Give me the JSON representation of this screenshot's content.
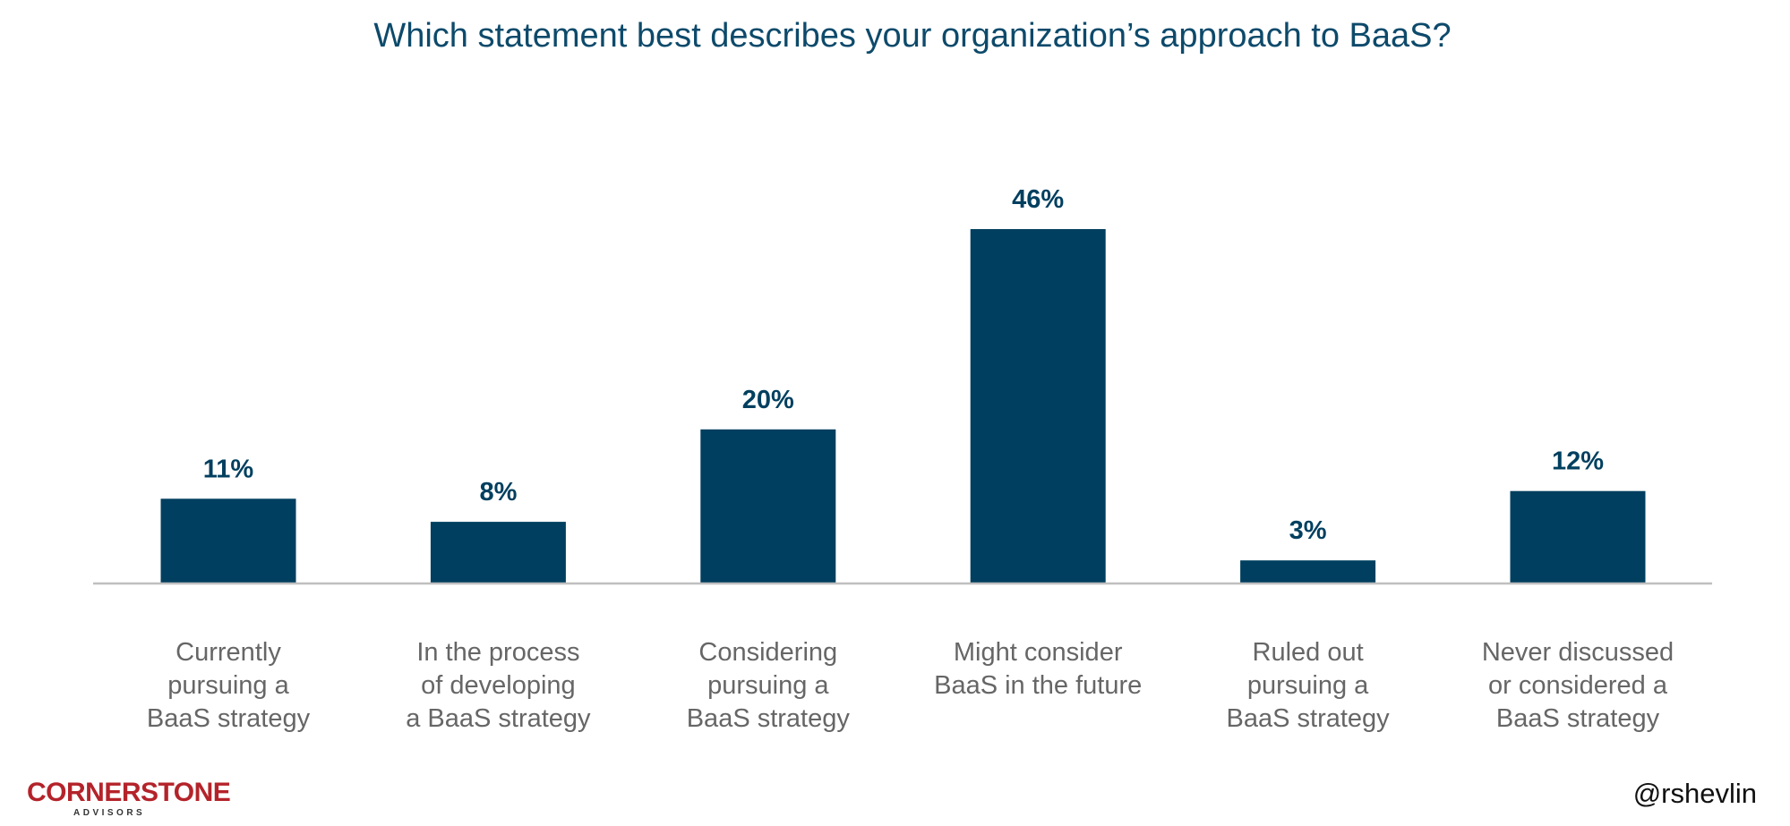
{
  "chart_data": {
    "type": "bar",
    "title": "Which statement best describes your organization’s approach to BaaS?",
    "categories": [
      [
        "Currently",
        "pursuing a",
        "BaaS strategy"
      ],
      [
        "In the process",
        "of developing",
        "a BaaS strategy"
      ],
      [
        "Considering",
        "pursuing a",
        "BaaS strategy"
      ],
      [
        "Might consider",
        "BaaS in the future"
      ],
      [
        "Ruled out",
        "pursuing a",
        "BaaS strategy"
      ],
      [
        "Never discussed",
        "or considered a",
        "BaaS strategy"
      ]
    ],
    "values": [
      11,
      8,
      20,
      46,
      3,
      12
    ],
    "value_labels": [
      "11%",
      "8%",
      "20%",
      "46%",
      "3%",
      "12%"
    ],
    "unit": "%",
    "ylim": [
      0,
      46
    ],
    "grid": false,
    "legend": "none",
    "colors": {
      "bar": "#003f5f",
      "title": "#0d4a6b",
      "category_text": "#666666",
      "baseline": "#bfbfbf"
    }
  },
  "footer": {
    "logo_main": "CORNERSTONE",
    "logo_sub": "ADVISORS",
    "logo_color": "#b4232a",
    "handle": "@rshevlin"
  }
}
